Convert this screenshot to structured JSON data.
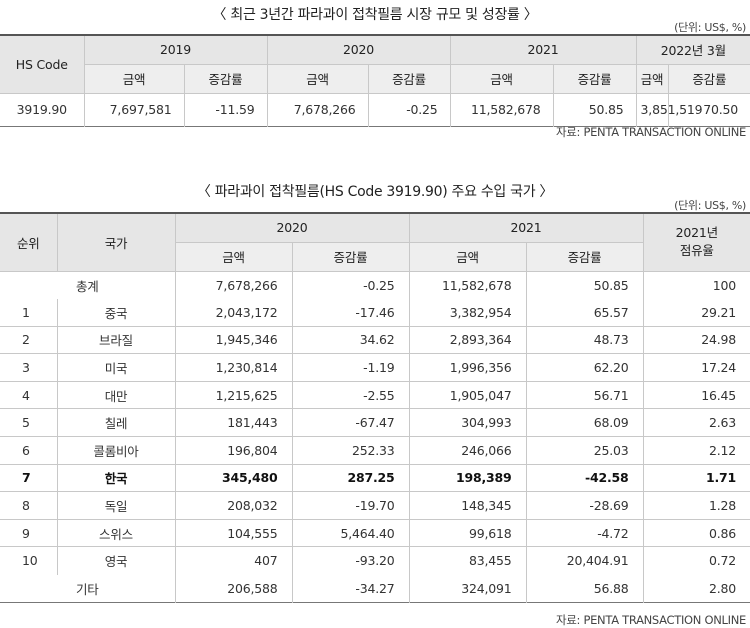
{
  "table1": {
    "title": "〈 최근 3년간 파라과이 접착필름 시장 규모 및 성장률 〉",
    "unit": "(단위: US$, %)",
    "col_hs": "HS Code",
    "years": [
      "2019",
      "2020",
      "2021",
      "2022년 3월"
    ],
    "sub_amount": "금액",
    "sub_rate": "증감률",
    "row": {
      "hs": "3919.90",
      "values": [
        "7,697,581",
        "-11.59",
        "7,678,266",
        "-0.25",
        "11,582,678",
        "50.85",
        "3,851,519",
        "70.50"
      ]
    },
    "source": "자료: PENTA TRANSACTION ONLINE"
  },
  "table2": {
    "title": "〈 파라과이 접착필름(HS Code 3919.90) 주요 수입 국가 〉",
    "unit": "(단위: US$, %)",
    "col_rank": "순위",
    "col_country": "국가",
    "years": [
      "2020",
      "2021"
    ],
    "share_label": "2021년\n점유율",
    "sub_amount": "금액",
    "sub_rate": "증감률",
    "total": {
      "label": "총계",
      "values": [
        "7,678,266",
        "-0.25",
        "11,582,678",
        "50.85",
        "100"
      ]
    },
    "rows": [
      {
        "rank": "1",
        "country": "중국",
        "values": [
          "2,043,172",
          "-17.46",
          "3,382,954",
          "65.57",
          "29.21"
        ]
      },
      {
        "rank": "2",
        "country": "브라질",
        "values": [
          "1,945,346",
          "34.62",
          "2,893,364",
          "48.73",
          "24.98"
        ]
      },
      {
        "rank": "3",
        "country": "미국",
        "values": [
          "1,230,814",
          "-1.19",
          "1,996,356",
          "62.20",
          "17.24"
        ]
      },
      {
        "rank": "4",
        "country": "대만",
        "values": [
          "1,215,625",
          "-2.55",
          "1,905,047",
          "56.71",
          "16.45"
        ]
      },
      {
        "rank": "5",
        "country": "칠레",
        "values": [
          "181,443",
          "-67.47",
          "304,993",
          "68.09",
          "2.63"
        ]
      },
      {
        "rank": "6",
        "country": "콜롬비아",
        "values": [
          "196,804",
          "252.33",
          "246,066",
          "25.03",
          "2.12"
        ]
      },
      {
        "rank": "7",
        "country": "한국",
        "values": [
          "345,480",
          "287.25",
          "198,389",
          "-42.58",
          "1.71"
        ]
      },
      {
        "rank": "8",
        "country": "독일",
        "values": [
          "208,032",
          "-19.70",
          "148,345",
          "-28.69",
          "1.28"
        ]
      },
      {
        "rank": "9",
        "country": "스위스",
        "values": [
          "104,555",
          "5,464.40",
          "99,618",
          "-4.72",
          "0.86"
        ]
      },
      {
        "rank": "10",
        "country": "영국",
        "values": [
          "407",
          "-93.20",
          "83,455",
          "20,404.91",
          "0.72"
        ]
      }
    ],
    "other": {
      "label": "기타",
      "values": [
        "206,588",
        "-34.27",
        "324,091",
        "56.88",
        "2.80"
      ]
    },
    "highlight_rank": "7",
    "source": "자료: PENTA TRANSACTION ONLINE"
  }
}
